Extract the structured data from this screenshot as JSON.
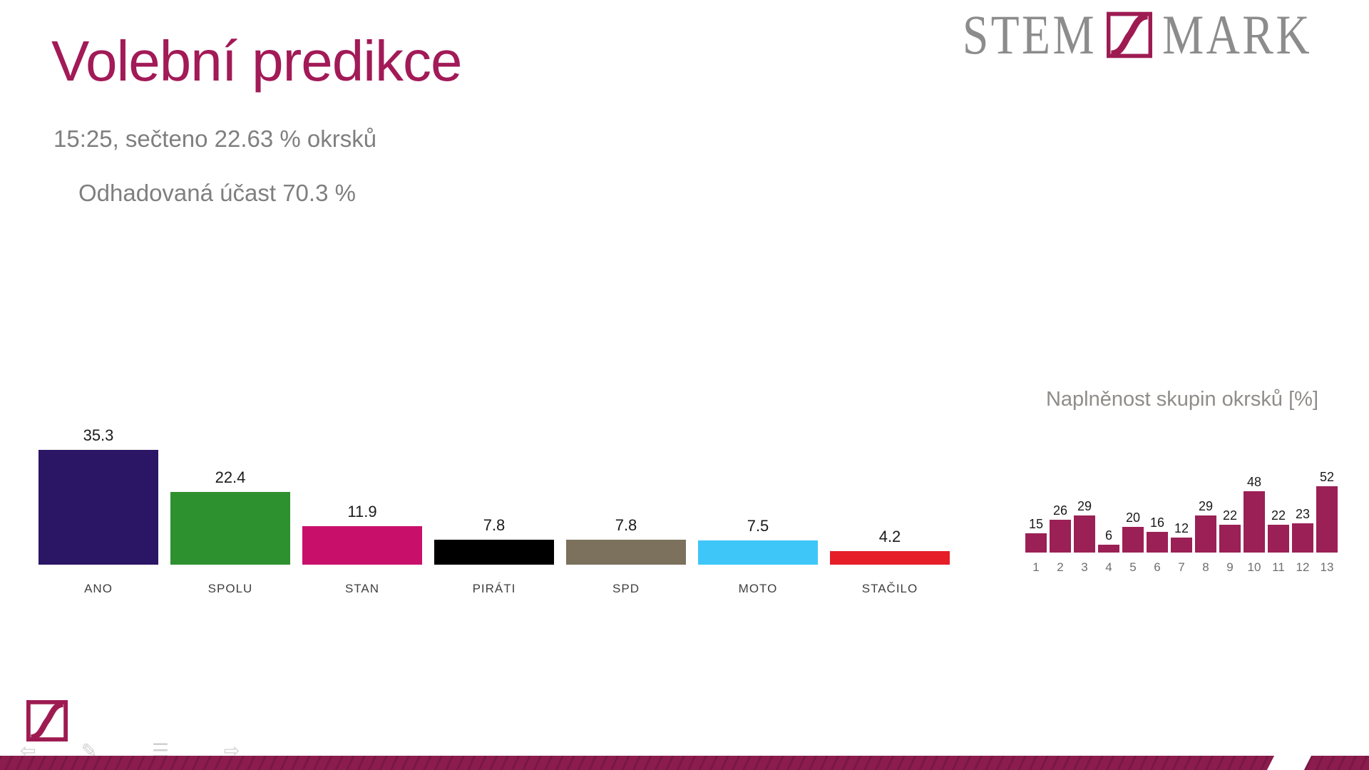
{
  "header": {
    "title": "Volební predikce",
    "subtitle_line1": "15:25, sečteno 22.63 % okrsků",
    "subtitle_line2": "Odhadovaná účast 70.3 %"
  },
  "brand": {
    "word_left": "STEM",
    "word_right": "MARK",
    "text_color": "#8c8c8c",
    "accent_color": "#9e1b52"
  },
  "colors": {
    "title_accent": "#a21a57",
    "subtitle_gray": "#7f7f7f",
    "ribbon_wine": "#8c1c4e",
    "groups_bar_wine": "#9b2055"
  },
  "chart_data": [
    {
      "type": "bar",
      "name": "election-prediction",
      "title": "",
      "xlabel": "",
      "ylabel": "",
      "categories": [
        "ANO",
        "SPOLU",
        "STAN",
        "PIRÁTI",
        "SPD",
        "MOTO",
        "STAČILO"
      ],
      "values": [
        35.3,
        22.4,
        11.9,
        7.8,
        7.8,
        7.5,
        4.2
      ],
      "value_labels": [
        "35.3",
        "22.4",
        "11.9",
        "7.8",
        "7.8",
        "7.5",
        "4.2"
      ],
      "bar_colors": [
        "#2b1565",
        "#2e9130",
        "#c8106a",
        "#000000",
        "#7b715c",
        "#3ec6f9",
        "#e61e28"
      ],
      "ylim": [
        0,
        40
      ],
      "grid": false,
      "axis_lines": false,
      "legend": false,
      "data_labels": "above-bars"
    },
    {
      "type": "bar",
      "name": "group-completion",
      "title": "Naplněnost skupin okrsků [%]",
      "xlabel": "",
      "ylabel": "",
      "categories": [
        "1",
        "2",
        "3",
        "4",
        "5",
        "6",
        "7",
        "8",
        "9",
        "10",
        "11",
        "12",
        "13"
      ],
      "values": [
        15,
        26,
        29,
        6,
        20,
        16,
        12,
        29,
        22,
        48,
        22,
        23,
        52
      ],
      "value_labels": [
        "15",
        "26",
        "29",
        "6",
        "20",
        "16",
        "12",
        "29",
        "22",
        "48",
        "22",
        "23",
        "52"
      ],
      "bar_color": "#9b2055",
      "ylim": [
        0,
        55
      ],
      "grid": false,
      "axis_lines": false,
      "legend": false,
      "data_labels": "above-bars"
    }
  ],
  "footer": {
    "controls": [
      {
        "name": "previous-slide",
        "glyph": "⇦"
      },
      {
        "name": "pen-tool",
        "glyph": "✎"
      },
      {
        "name": "slide-menu",
        "glyph": "☰"
      },
      {
        "name": "next-slide",
        "glyph": "⇨"
      }
    ]
  }
}
